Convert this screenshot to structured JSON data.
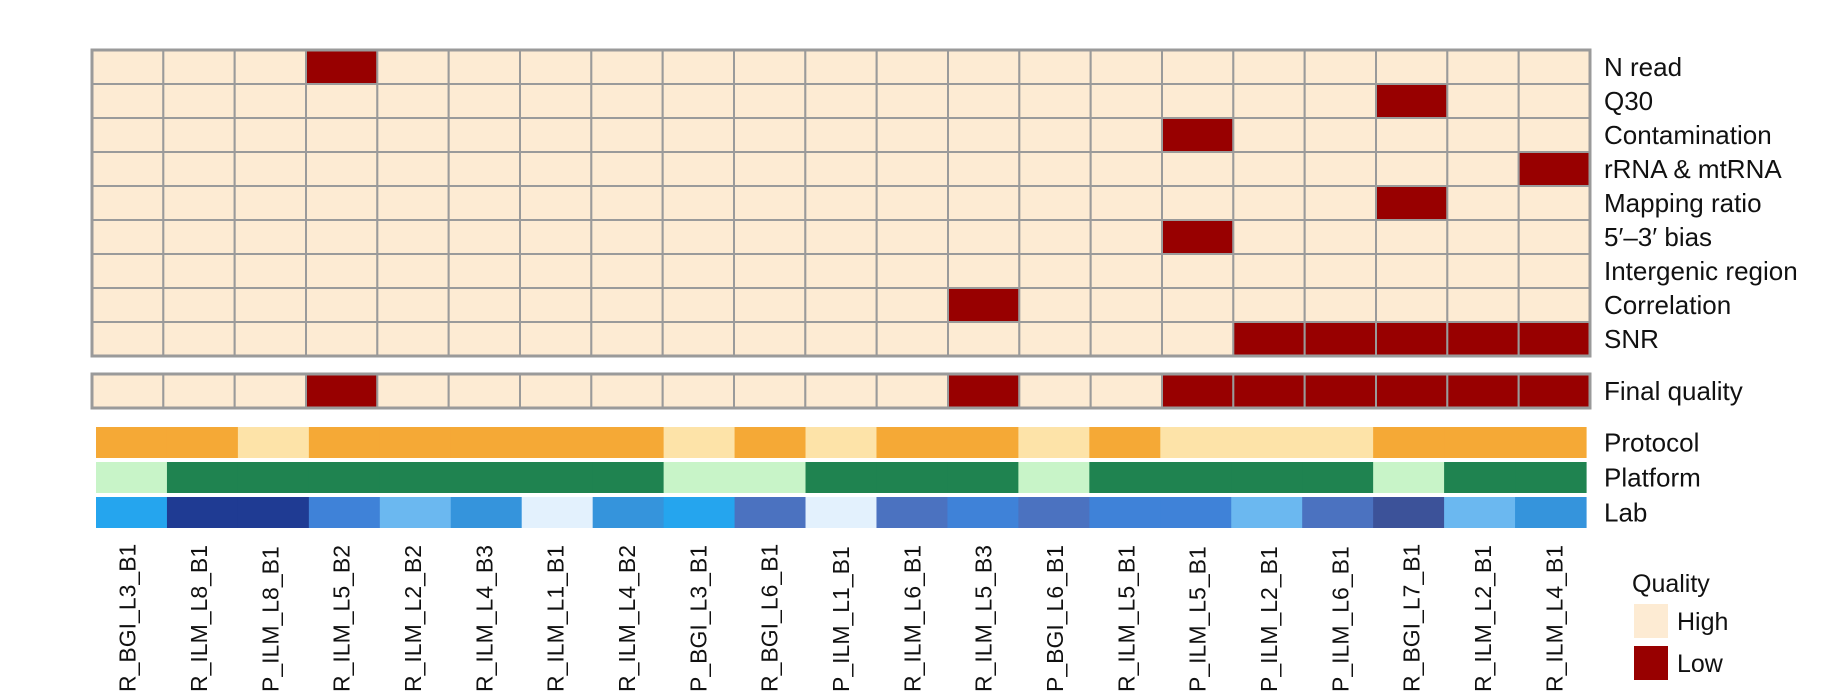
{
  "chart_data": {
    "type": "heatmap",
    "columns": [
      "R_BGI_L3_B1",
      "R_ILM_L8_B1",
      "P_ILM_L8_B1",
      "R_ILM_L5_B2",
      "R_ILM_L2_B2",
      "R_ILM_L4_B3",
      "R_ILM_L1_B1",
      "R_ILM_L4_B2",
      "P_BGI_L3_B1",
      "R_BGI_L6_B1",
      "P_ILM_L1_B1",
      "R_ILM_L6_B1",
      "R_ILM_L5_B3",
      "P_BGI_L6_B1",
      "R_ILM_L5_B1",
      "P_ILM_L5_B1",
      "P_ILM_L2_B1",
      "P_ILM_L6_B1",
      "R_BGI_L7_B1",
      "R_ILM_L2_B1",
      "R_ILM_L4_B1"
    ],
    "metrics": [
      {
        "name": "N read",
        "low": [
          3
        ]
      },
      {
        "name": "Q30",
        "low": [
          18
        ]
      },
      {
        "name": "Contamination",
        "low": [
          15
        ]
      },
      {
        "name": "rRNA & mtRNA",
        "low": [
          20
        ]
      },
      {
        "name": "Mapping ratio",
        "low": [
          18
        ]
      },
      {
        "name": "5′–3′ bias",
        "low": [
          15
        ]
      },
      {
        "name": "Intergenic region",
        "low": []
      },
      {
        "name": "Correlation",
        "low": [
          12
        ]
      },
      {
        "name": "SNR",
        "low": [
          16,
          17,
          18,
          19,
          20
        ]
      }
    ],
    "final": {
      "name": "Final quality",
      "low": [
        3,
        12,
        15,
        16,
        17,
        18,
        19,
        20
      ]
    },
    "annotations": [
      {
        "name": "Protocol",
        "colors": [
          "#f5a936",
          "#f5a936",
          "#fde3a8",
          "#f5a936",
          "#f5a936",
          "#f5a936",
          "#f5a936",
          "#f5a936",
          "#fde3a8",
          "#f5a936",
          "#fde3a8",
          "#f5a936",
          "#f5a936",
          "#fde3a8",
          "#f5a936",
          "#fde3a8",
          "#fde3a8",
          "#fde3a8",
          "#f5a936",
          "#f5a936",
          "#f5a936"
        ]
      },
      {
        "name": "Platform",
        "colors": [
          "#c8f4c8",
          "#1f8350",
          "#1f8350",
          "#1f8350",
          "#1f8350",
          "#1f8350",
          "#1f8350",
          "#1f8350",
          "#c8f4c8",
          "#c8f4c8",
          "#1f8350",
          "#1f8350",
          "#1f8350",
          "#c8f4c8",
          "#1f8350",
          "#1f8350",
          "#1f8350",
          "#1f8350",
          "#c8f4c8",
          "#1f8350",
          "#1f8350"
        ]
      },
      {
        "name": "Lab",
        "colors": [
          "#25a5ee",
          "#1f3b93",
          "#1f3b93",
          "#3f82d8",
          "#6bb8f0",
          "#3594dc",
          "#e3f1fd",
          "#3594dc",
          "#25a5ee",
          "#4b72c0",
          "#e3f1fd",
          "#4b72c0",
          "#3f82d8",
          "#4b72c0",
          "#3f82d8",
          "#3f82d8",
          "#6bb8f0",
          "#4b72c0",
          "#3c5299",
          "#6bb8f0",
          "#3594dc"
        ]
      }
    ],
    "legend": {
      "title": "Quality",
      "items": [
        {
          "label": "High",
          "color": "#fdebd3"
        },
        {
          "label": "Low",
          "color": "#980000"
        }
      ]
    },
    "colors": {
      "high": "#fdebd3",
      "low": "#980000",
      "grid": "#9a9a9a"
    }
  }
}
